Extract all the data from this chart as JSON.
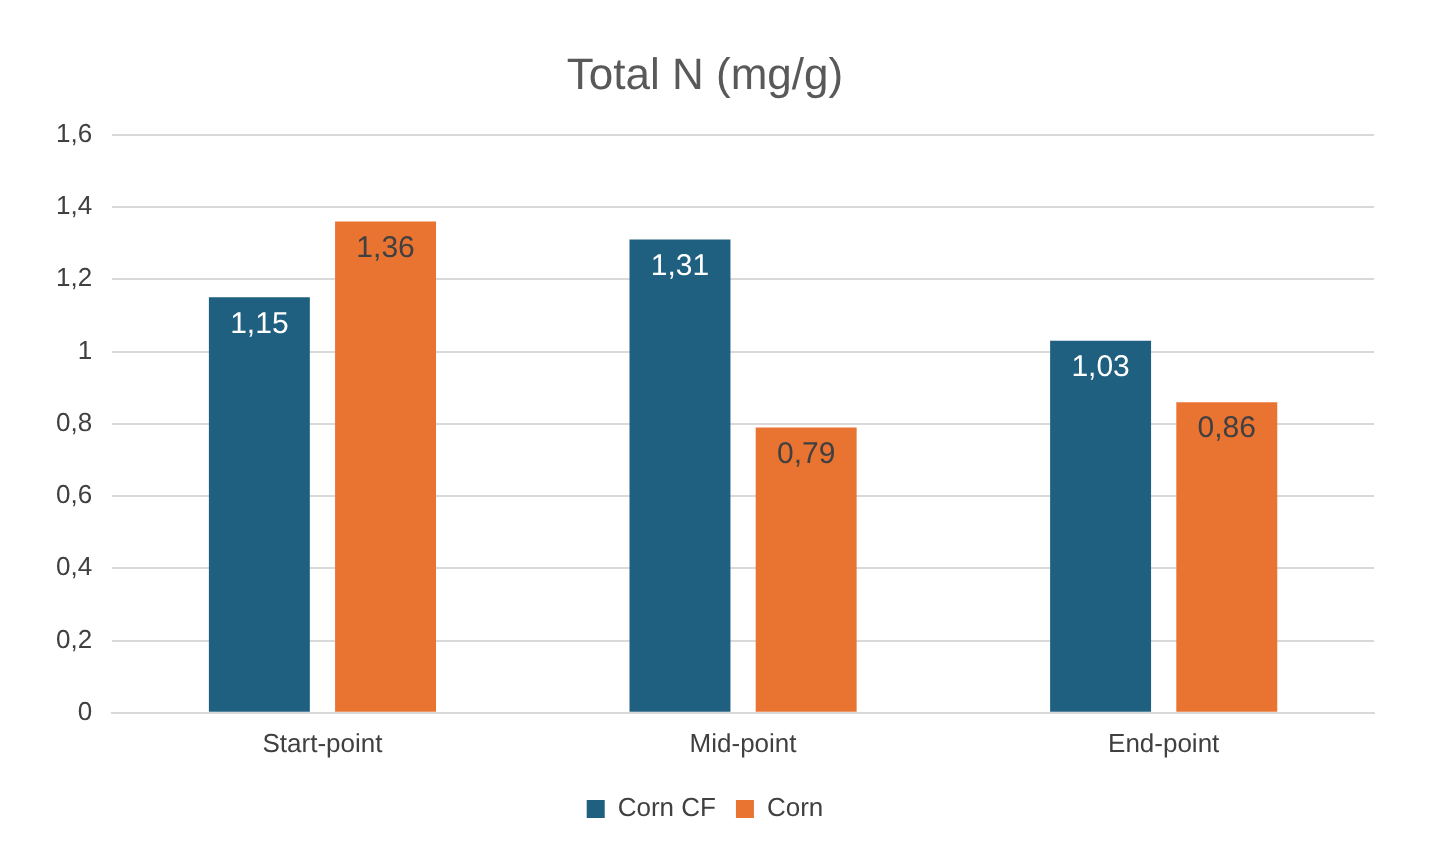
{
  "chart_data": {
    "type": "bar",
    "title": "Total N (mg/g)",
    "categories": [
      "Start-point",
      "Mid-point",
      "End-point"
    ],
    "series": [
      {
        "name": "Corn CF",
        "color": "#1f5f7f",
        "values": [
          1.15,
          1.31,
          1.03
        ],
        "value_labels": [
          "1,15",
          "1,31",
          "1,03"
        ]
      },
      {
        "name": "Corn",
        "color": "#e97432",
        "values": [
          1.36,
          0.79,
          0.86
        ],
        "value_labels": [
          "1,36",
          "0,79",
          "0,86"
        ]
      }
    ],
    "ylim": [
      0,
      1.6
    ],
    "yticks": [
      0,
      {
        "value": 0.2,
        "label": "0,2"
      },
      {
        "value": 0.4,
        "label": "0,4"
      },
      {
        "value": 0.6,
        "label": "0,6"
      },
      {
        "value": 0.8,
        "label": "0,8"
      },
      1,
      {
        "value": 1.2,
        "label": "1,2"
      },
      {
        "value": 1.4,
        "label": "1,4"
      },
      {
        "value": 1.6,
        "label": "1,6"
      }
    ],
    "grid": "y",
    "legend": "bottom"
  }
}
